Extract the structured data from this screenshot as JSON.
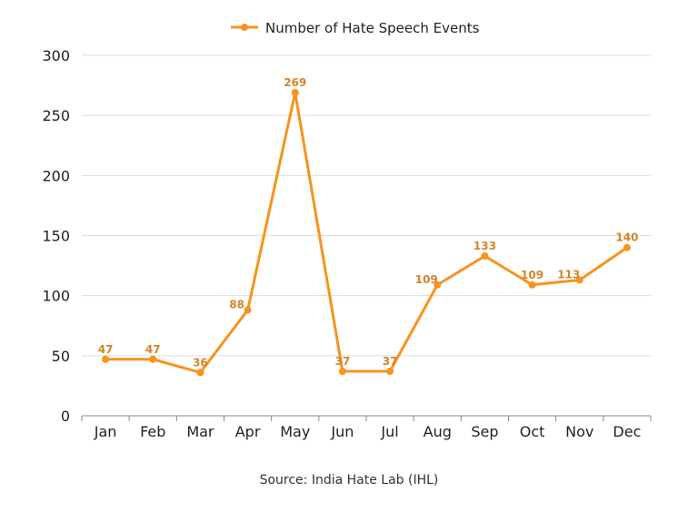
{
  "chart_data": {
    "type": "line",
    "categories": [
      "Jan",
      "Feb",
      "Mar",
      "Apr",
      "May",
      "Jun",
      "Jul",
      "Aug",
      "Sep",
      "Oct",
      "Nov",
      "Dec"
    ],
    "series": [
      {
        "name": "Number of Hate Speech Events",
        "values": [
          47,
          47,
          36,
          88,
          269,
          37,
          37,
          109,
          133,
          109,
          113,
          140
        ]
      }
    ],
    "ylim": [
      0,
      300
    ],
    "yticks": [
      0,
      50,
      100,
      150,
      200,
      250,
      300
    ],
    "grid": true,
    "legend": "top-center",
    "data_labels": true,
    "source": "Source: India Hate Lab (IHL)",
    "colors": {
      "line": "#f7931e",
      "label": "#d4842a",
      "grid": "#dddddd",
      "axis": "#888888"
    }
  }
}
